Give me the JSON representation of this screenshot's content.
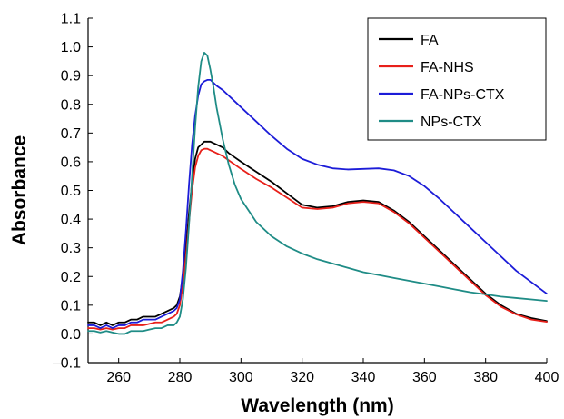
{
  "chart_data": {
    "type": "line",
    "title": "",
    "xlabel": "Wavelength (nm)",
    "ylabel": "Absorbance",
    "xlim": [
      250,
      400
    ],
    "ylim": [
      -0.1,
      1.1
    ],
    "xticks": [
      260,
      280,
      300,
      320,
      340,
      360,
      380,
      400
    ],
    "yticks": [
      -0.1,
      0.0,
      0.1,
      0.2,
      0.3,
      0.4,
      0.5,
      0.6,
      0.7,
      0.8,
      0.9,
      1.0,
      1.1
    ],
    "ytick_labels": [
      "–0.1",
      "0.0",
      "0.1",
      "0.2",
      "0.3",
      "0.4",
      "0.5",
      "0.6",
      "0.7",
      "0.8",
      "0.9",
      "1.0",
      "1.1"
    ],
    "grid": false,
    "legend_position": "top-right",
    "series": [
      {
        "name": "FA",
        "color": "#000000",
        "x": [
          250,
          252,
          254,
          256,
          258,
          260,
          262,
          264,
          266,
          268,
          270,
          272,
          274,
          276,
          278,
          279,
          280,
          281,
          282,
          283,
          284,
          285,
          286,
          287,
          288,
          289,
          290,
          291,
          292,
          294,
          296,
          298,
          300,
          305,
          310,
          315,
          320,
          325,
          330,
          335,
          340,
          345,
          350,
          355,
          360,
          365,
          370,
          375,
          380,
          385,
          390,
          395,
          400
        ],
        "y": [
          0.04,
          0.04,
          0.03,
          0.04,
          0.03,
          0.04,
          0.04,
          0.05,
          0.05,
          0.06,
          0.06,
          0.06,
          0.07,
          0.08,
          0.09,
          0.1,
          0.13,
          0.2,
          0.3,
          0.42,
          0.53,
          0.61,
          0.65,
          0.66,
          0.67,
          0.67,
          0.67,
          0.665,
          0.66,
          0.65,
          0.63,
          0.615,
          0.6,
          0.565,
          0.53,
          0.49,
          0.45,
          0.44,
          0.445,
          0.46,
          0.465,
          0.46,
          0.43,
          0.39,
          0.34,
          0.29,
          0.24,
          0.19,
          0.14,
          0.1,
          0.07,
          0.055,
          0.045
        ]
      },
      {
        "name": "FA-NHS",
        "color": "#e8201a",
        "x": [
          250,
          252,
          254,
          256,
          258,
          260,
          262,
          264,
          266,
          268,
          270,
          272,
          274,
          276,
          278,
          279,
          280,
          281,
          282,
          283,
          284,
          285,
          286,
          287,
          288,
          289,
          290,
          291,
          292,
          294,
          296,
          298,
          300,
          305,
          310,
          315,
          320,
          325,
          330,
          335,
          340,
          345,
          350,
          355,
          360,
          365,
          370,
          375,
          380,
          385,
          390,
          395,
          400
        ],
        "y": [
          0.02,
          0.02,
          0.015,
          0.02,
          0.015,
          0.02,
          0.02,
          0.03,
          0.03,
          0.03,
          0.035,
          0.04,
          0.04,
          0.05,
          0.06,
          0.07,
          0.1,
          0.17,
          0.27,
          0.39,
          0.5,
          0.58,
          0.62,
          0.64,
          0.645,
          0.645,
          0.64,
          0.635,
          0.63,
          0.62,
          0.605,
          0.59,
          0.575,
          0.54,
          0.51,
          0.475,
          0.44,
          0.435,
          0.44,
          0.455,
          0.46,
          0.455,
          0.425,
          0.385,
          0.335,
          0.285,
          0.235,
          0.185,
          0.135,
          0.095,
          0.068,
          0.05,
          0.042
        ]
      },
      {
        "name": "FA-NPs-CTX",
        "color": "#1c1cd8",
        "x": [
          250,
          252,
          254,
          256,
          258,
          260,
          262,
          264,
          266,
          268,
          270,
          272,
          274,
          276,
          278,
          279,
          280,
          281,
          282,
          283,
          284,
          285,
          286,
          287,
          288,
          289,
          290,
          291,
          292,
          294,
          296,
          298,
          300,
          305,
          310,
          315,
          320,
          325,
          330,
          335,
          340,
          345,
          350,
          355,
          360,
          365,
          370,
          375,
          380,
          385,
          390,
          395,
          400
        ],
        "y": [
          0.03,
          0.03,
          0.02,
          0.03,
          0.02,
          0.03,
          0.03,
          0.04,
          0.04,
          0.05,
          0.05,
          0.05,
          0.06,
          0.07,
          0.08,
          0.09,
          0.12,
          0.22,
          0.36,
          0.52,
          0.66,
          0.76,
          0.83,
          0.87,
          0.88,
          0.885,
          0.885,
          0.875,
          0.865,
          0.85,
          0.83,
          0.81,
          0.79,
          0.74,
          0.69,
          0.645,
          0.61,
          0.59,
          0.577,
          0.573,
          0.575,
          0.577,
          0.57,
          0.55,
          0.515,
          0.47,
          0.42,
          0.37,
          0.32,
          0.27,
          0.22,
          0.18,
          0.14
        ]
      },
      {
        "name": "NPs-CTX",
        "color": "#1f8c86",
        "x": [
          250,
          252,
          254,
          256,
          258,
          260,
          262,
          264,
          266,
          268,
          270,
          272,
          274,
          276,
          278,
          279,
          280,
          281,
          282,
          283,
          284,
          285,
          286,
          287,
          288,
          289,
          290,
          291,
          292,
          294,
          296,
          298,
          300,
          305,
          310,
          315,
          320,
          325,
          330,
          335,
          340,
          345,
          350,
          355,
          360,
          365,
          370,
          375,
          380,
          385,
          390,
          395,
          400
        ],
        "y": [
          0.01,
          0.01,
          0.005,
          0.01,
          0.005,
          0.0,
          0.0,
          0.01,
          0.01,
          0.01,
          0.015,
          0.02,
          0.02,
          0.03,
          0.03,
          0.04,
          0.06,
          0.12,
          0.23,
          0.38,
          0.55,
          0.72,
          0.86,
          0.95,
          0.98,
          0.97,
          0.92,
          0.86,
          0.79,
          0.68,
          0.59,
          0.52,
          0.47,
          0.39,
          0.34,
          0.305,
          0.28,
          0.26,
          0.245,
          0.23,
          0.215,
          0.205,
          0.195,
          0.185,
          0.175,
          0.165,
          0.155,
          0.145,
          0.138,
          0.13,
          0.125,
          0.12,
          0.115
        ]
      }
    ]
  }
}
